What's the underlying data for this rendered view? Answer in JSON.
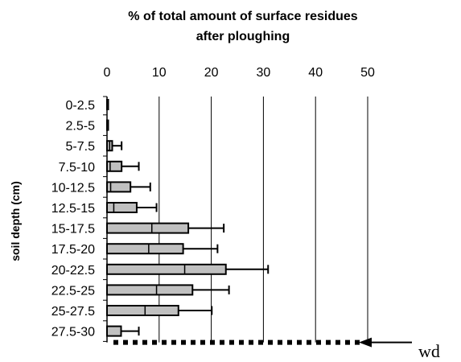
{
  "chart_data": {
    "type": "bar",
    "orientation": "horizontal",
    "title_lines": [
      "% of total amount of surface residues",
      "after ploughing"
    ],
    "xlabel": "",
    "ylabel": "soil depth (cm)",
    "xlim": [
      0,
      50
    ],
    "xticks": [
      0,
      10,
      20,
      30,
      40,
      50
    ],
    "grid": "vertical",
    "categories": [
      "0-2.5",
      "2.5-5",
      "5-7.5",
      "7.5-10",
      "10-12.5",
      "12.5-15",
      "15-17.5",
      "17.5-20",
      "20-22.5",
      "22.5-25",
      "25-27.5",
      "27.5-30"
    ],
    "series": [
      {
        "values": [
          0.2,
          0.1,
          1.0,
          2.8,
          4.5,
          5.7,
          15.6,
          14.6,
          22.8,
          16.4,
          13.7,
          2.7
        ],
        "error_plus": [
          0.1,
          0.1,
          1.8,
          3.3,
          3.8,
          3.8,
          6.8,
          6.6,
          8.1,
          7.0,
          6.4,
          3.4
        ],
        "inner_marks": [
          null,
          null,
          0.5,
          0.6,
          0.7,
          1.3,
          8.6,
          8.0,
          14.9,
          9.5,
          7.3,
          null
        ],
        "color": "#c0c0c0"
      }
    ],
    "reference_line": {
      "value": 50,
      "at_category_after": "27.5-30",
      "style": "dotted",
      "label": "wd"
    }
  }
}
